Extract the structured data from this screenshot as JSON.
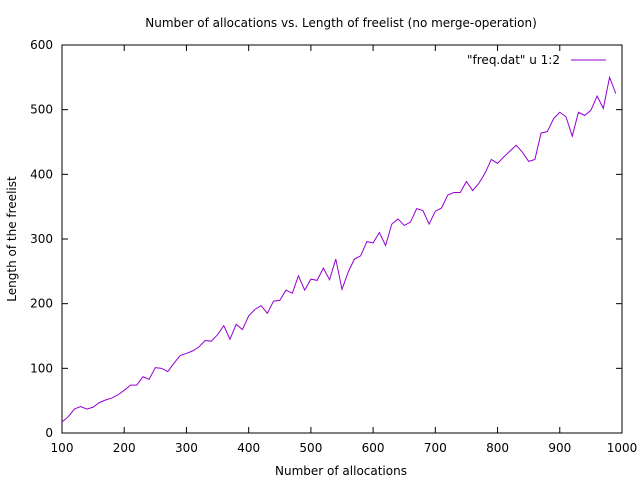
{
  "chart_data": {
    "type": "line",
    "title": "Number of allocations vs. Length of freelist (no merge-operation)",
    "xlabel": "Number of allocations",
    "ylabel": "Length of the freelist",
    "xlim": [
      100,
      1000
    ],
    "ylim": [
      0,
      600
    ],
    "xticks": [
      100,
      200,
      300,
      400,
      500,
      600,
      700,
      800,
      900,
      1000
    ],
    "yticks": [
      0,
      100,
      200,
      300,
      400,
      500,
      600
    ],
    "grid": false,
    "legend_position": "top-right",
    "series": [
      {
        "name": "\"freq.dat\" u 1:2",
        "color": "#9400d3",
        "x": [
          100,
          110,
          120,
          130,
          140,
          150,
          160,
          170,
          180,
          190,
          200,
          210,
          220,
          230,
          240,
          250,
          260,
          270,
          280,
          290,
          300,
          310,
          320,
          330,
          340,
          350,
          360,
          370,
          380,
          390,
          400,
          410,
          420,
          430,
          440,
          450,
          460,
          470,
          480,
          490,
          500,
          510,
          520,
          530,
          540,
          550,
          560,
          570,
          580,
          590,
          600,
          610,
          620,
          630,
          640,
          650,
          660,
          670,
          680,
          690,
          700,
          710,
          720,
          730,
          740,
          750,
          760,
          770,
          780,
          790,
          800,
          810,
          820,
          830,
          840,
          850,
          860,
          870,
          880,
          890,
          900,
          910,
          920,
          930,
          940,
          950,
          960,
          970,
          980,
          990
        ],
        "y": [
          17,
          25,
          37,
          41,
          37,
          40,
          47,
          51,
          54,
          59,
          66,
          74,
          74,
          87,
          83,
          101,
          100,
          95,
          108,
          120,
          123,
          127,
          133,
          143,
          142,
          152,
          166,
          145,
          168,
          160,
          181,
          191,
          197,
          185,
          204,
          205,
          221,
          216,
          243,
          221,
          238,
          236,
          255,
          237,
          269,
          222,
          249,
          269,
          274,
          296,
          294,
          310,
          290,
          323,
          331,
          321,
          326,
          347,
          344,
          323,
          343,
          348,
          368,
          372,
          372,
          389,
          375,
          386,
          402,
          423,
          417,
          427,
          436,
          445,
          434,
          420,
          423,
          464,
          466,
          486,
          496,
          489,
          459,
          496,
          491,
          499,
          521,
          502,
          550,
          525
        ]
      }
    ]
  }
}
